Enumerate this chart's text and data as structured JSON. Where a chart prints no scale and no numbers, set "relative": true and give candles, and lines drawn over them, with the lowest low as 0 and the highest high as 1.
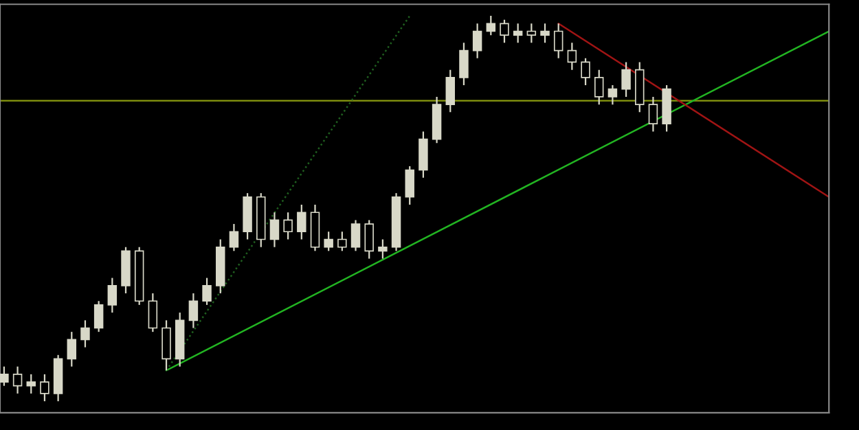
{
  "chart_data": {
    "type": "candlestick",
    "relative": true,
    "color": "#d8d8c8",
    "grid": false,
    "categories": [
      null,
      null,
      null,
      null,
      null,
      null,
      null,
      null,
      null,
      null,
      null,
      null,
      null,
      null,
      null,
      null,
      null,
      null,
      null,
      null,
      null,
      null,
      null,
      null,
      null,
      null,
      null,
      null,
      null,
      null,
      null,
      null,
      null,
      null,
      null,
      null,
      null,
      null,
      null,
      null,
      null,
      null,
      null,
      null,
      null,
      null,
      null,
      null,
      null,
      null,
      null,
      null,
      null,
      null,
      null,
      null,
      null,
      null,
      null,
      null,
      null,
      null
    ],
    "ohlc": [
      [
        0.05,
        0.09,
        0.04,
        0.07
      ],
      [
        0.07,
        0.09,
        0.02,
        0.04
      ],
      [
        0.04,
        0.07,
        0.02,
        0.05
      ],
      [
        0.05,
        0.07,
        0,
        0.02
      ],
      [
        0.02,
        0.12,
        0,
        0.11
      ],
      [
        0.11,
        0.18,
        0.09,
        0.16
      ],
      [
        0.16,
        0.21,
        0.14,
        0.19
      ],
      [
        0.19,
        0.26,
        0.18,
        0.25
      ],
      [
        0.25,
        0.32,
        0.23,
        0.3
      ],
      [
        0.3,
        0.4,
        0.28,
        0.39
      ],
      [
        0.39,
        0.4,
        0.25,
        0.26
      ],
      [
        0.26,
        0.28,
        0.18,
        0.19
      ],
      [
        0.19,
        0.21,
        0.08,
        0.11
      ],
      [
        0.11,
        0.23,
        0.09,
        0.21
      ],
      [
        0.21,
        0.28,
        0.19,
        0.26
      ],
      [
        0.26,
        0.32,
        0.25,
        0.3
      ],
      [
        0.3,
        0.42,
        0.28,
        0.4
      ],
      [
        0.4,
        0.46,
        0.39,
        0.44
      ],
      [
        0.44,
        0.54,
        0.42,
        0.53
      ],
      [
        0.53,
        0.54,
        0.4,
        0.42
      ],
      [
        0.42,
        0.49,
        0.4,
        0.47
      ],
      [
        0.47,
        0.49,
        0.42,
        0.44
      ],
      [
        0.44,
        0.51,
        0.42,
        0.49
      ],
      [
        0.49,
        0.51,
        0.39,
        0.4
      ],
      [
        0.4,
        0.44,
        0.39,
        0.42
      ],
      [
        0.42,
        0.44,
        0.39,
        0.4
      ],
      [
        0.4,
        0.47,
        0.39,
        0.46
      ],
      [
        0.46,
        0.47,
        0.37,
        0.39
      ],
      [
        0.39,
        0.42,
        0.37,
        0.4
      ],
      [
        0.4,
        0.54,
        0.39,
        0.53
      ],
      [
        0.53,
        0.61,
        0.51,
        0.6
      ],
      [
        0.6,
        0.7,
        0.58,
        0.68
      ],
      [
        0.68,
        0.79,
        0.67,
        0.77
      ],
      [
        0.77,
        0.86,
        0.75,
        0.84
      ],
      [
        0.84,
        0.93,
        0.82,
        0.91
      ],
      [
        0.91,
        0.98,
        0.89,
        0.96
      ],
      [
        0.96,
        1,
        0.95,
        0.98
      ],
      [
        0.98,
        0.99,
        0.93,
        0.95
      ],
      [
        0.95,
        0.98,
        0.93,
        0.96
      ],
      [
        0.96,
        0.98,
        0.93,
        0.95
      ],
      [
        0.95,
        0.98,
        0.93,
        0.96
      ],
      [
        0.96,
        0.98,
        0.89,
        0.91
      ],
      [
        0.91,
        0.93,
        0.86,
        0.88
      ],
      [
        0.88,
        0.89,
        0.82,
        0.84
      ],
      [
        0.84,
        0.86,
        0.77,
        0.79
      ],
      [
        0.79,
        0.82,
        0.77,
        0.81
      ],
      [
        0.81,
        0.88,
        0.79,
        0.86
      ],
      [
        0.86,
        0.88,
        0.75,
        0.77
      ],
      [
        0.77,
        0.79,
        0.7,
        0.72
      ],
      [
        0.72,
        0.82,
        0.7,
        0.81
      ],
      null,
      null,
      null,
      null,
      null,
      null,
      null,
      null,
      null,
      null,
      null,
      null
    ],
    "series": [
      {
        "type": "line",
        "color": "#22b422",
        "line_style": "solid",
        "values": [
          null,
          null,
          null,
          null,
          null,
          null,
          null,
          null,
          null,
          null,
          null,
          null,
          0.08,
          null,
          null,
          null,
          null,
          null,
          null,
          null,
          null,
          null,
          null,
          null,
          null,
          null,
          null,
          null,
          null,
          null,
          null,
          null,
          null,
          null,
          null,
          null,
          null,
          null,
          null,
          null,
          null,
          null,
          null,
          null,
          null,
          null,
          null,
          null,
          null,
          null,
          null,
          null,
          null,
          null,
          null,
          null,
          null,
          null,
          null,
          null,
          null,
          0.96
        ]
      },
      {
        "type": "line",
        "color": "#a01414",
        "line_style": "solid",
        "values": [
          null,
          null,
          null,
          null,
          null,
          null,
          null,
          null,
          null,
          null,
          null,
          null,
          null,
          null,
          null,
          null,
          null,
          null,
          null,
          null,
          null,
          null,
          null,
          null,
          null,
          null,
          null,
          null,
          null,
          null,
          null,
          null,
          null,
          null,
          null,
          null,
          null,
          null,
          null,
          null,
          null,
          0.98,
          null,
          null,
          null,
          null,
          null,
          null,
          null,
          null,
          null,
          null,
          null,
          null,
          null,
          null,
          null,
          null,
          null,
          null,
          null,
          0.53
        ]
      },
      {
        "type": "line",
        "color": "#1f5f1f",
        "line_style": "dotted",
        "values": [
          null,
          null,
          null,
          null,
          null,
          null,
          null,
          null,
          null,
          null,
          null,
          null,
          0.08,
          null,
          null,
          null,
          null,
          null,
          null,
          null,
          null,
          null,
          null,
          null,
          null,
          null,
          null,
          null,
          null,
          null,
          1.0,
          null,
          null,
          null,
          null,
          null,
          null,
          null,
          null,
          null,
          null,
          null,
          null,
          null,
          null,
          null,
          null,
          null,
          null,
          null,
          null,
          null,
          null,
          null,
          null,
          null,
          null,
          null,
          null,
          null,
          null,
          null
        ]
      }
    ],
    "ref_lines": [
      {
        "axis": "y",
        "value": 0.78,
        "color": "#8a9a10"
      }
    ]
  }
}
